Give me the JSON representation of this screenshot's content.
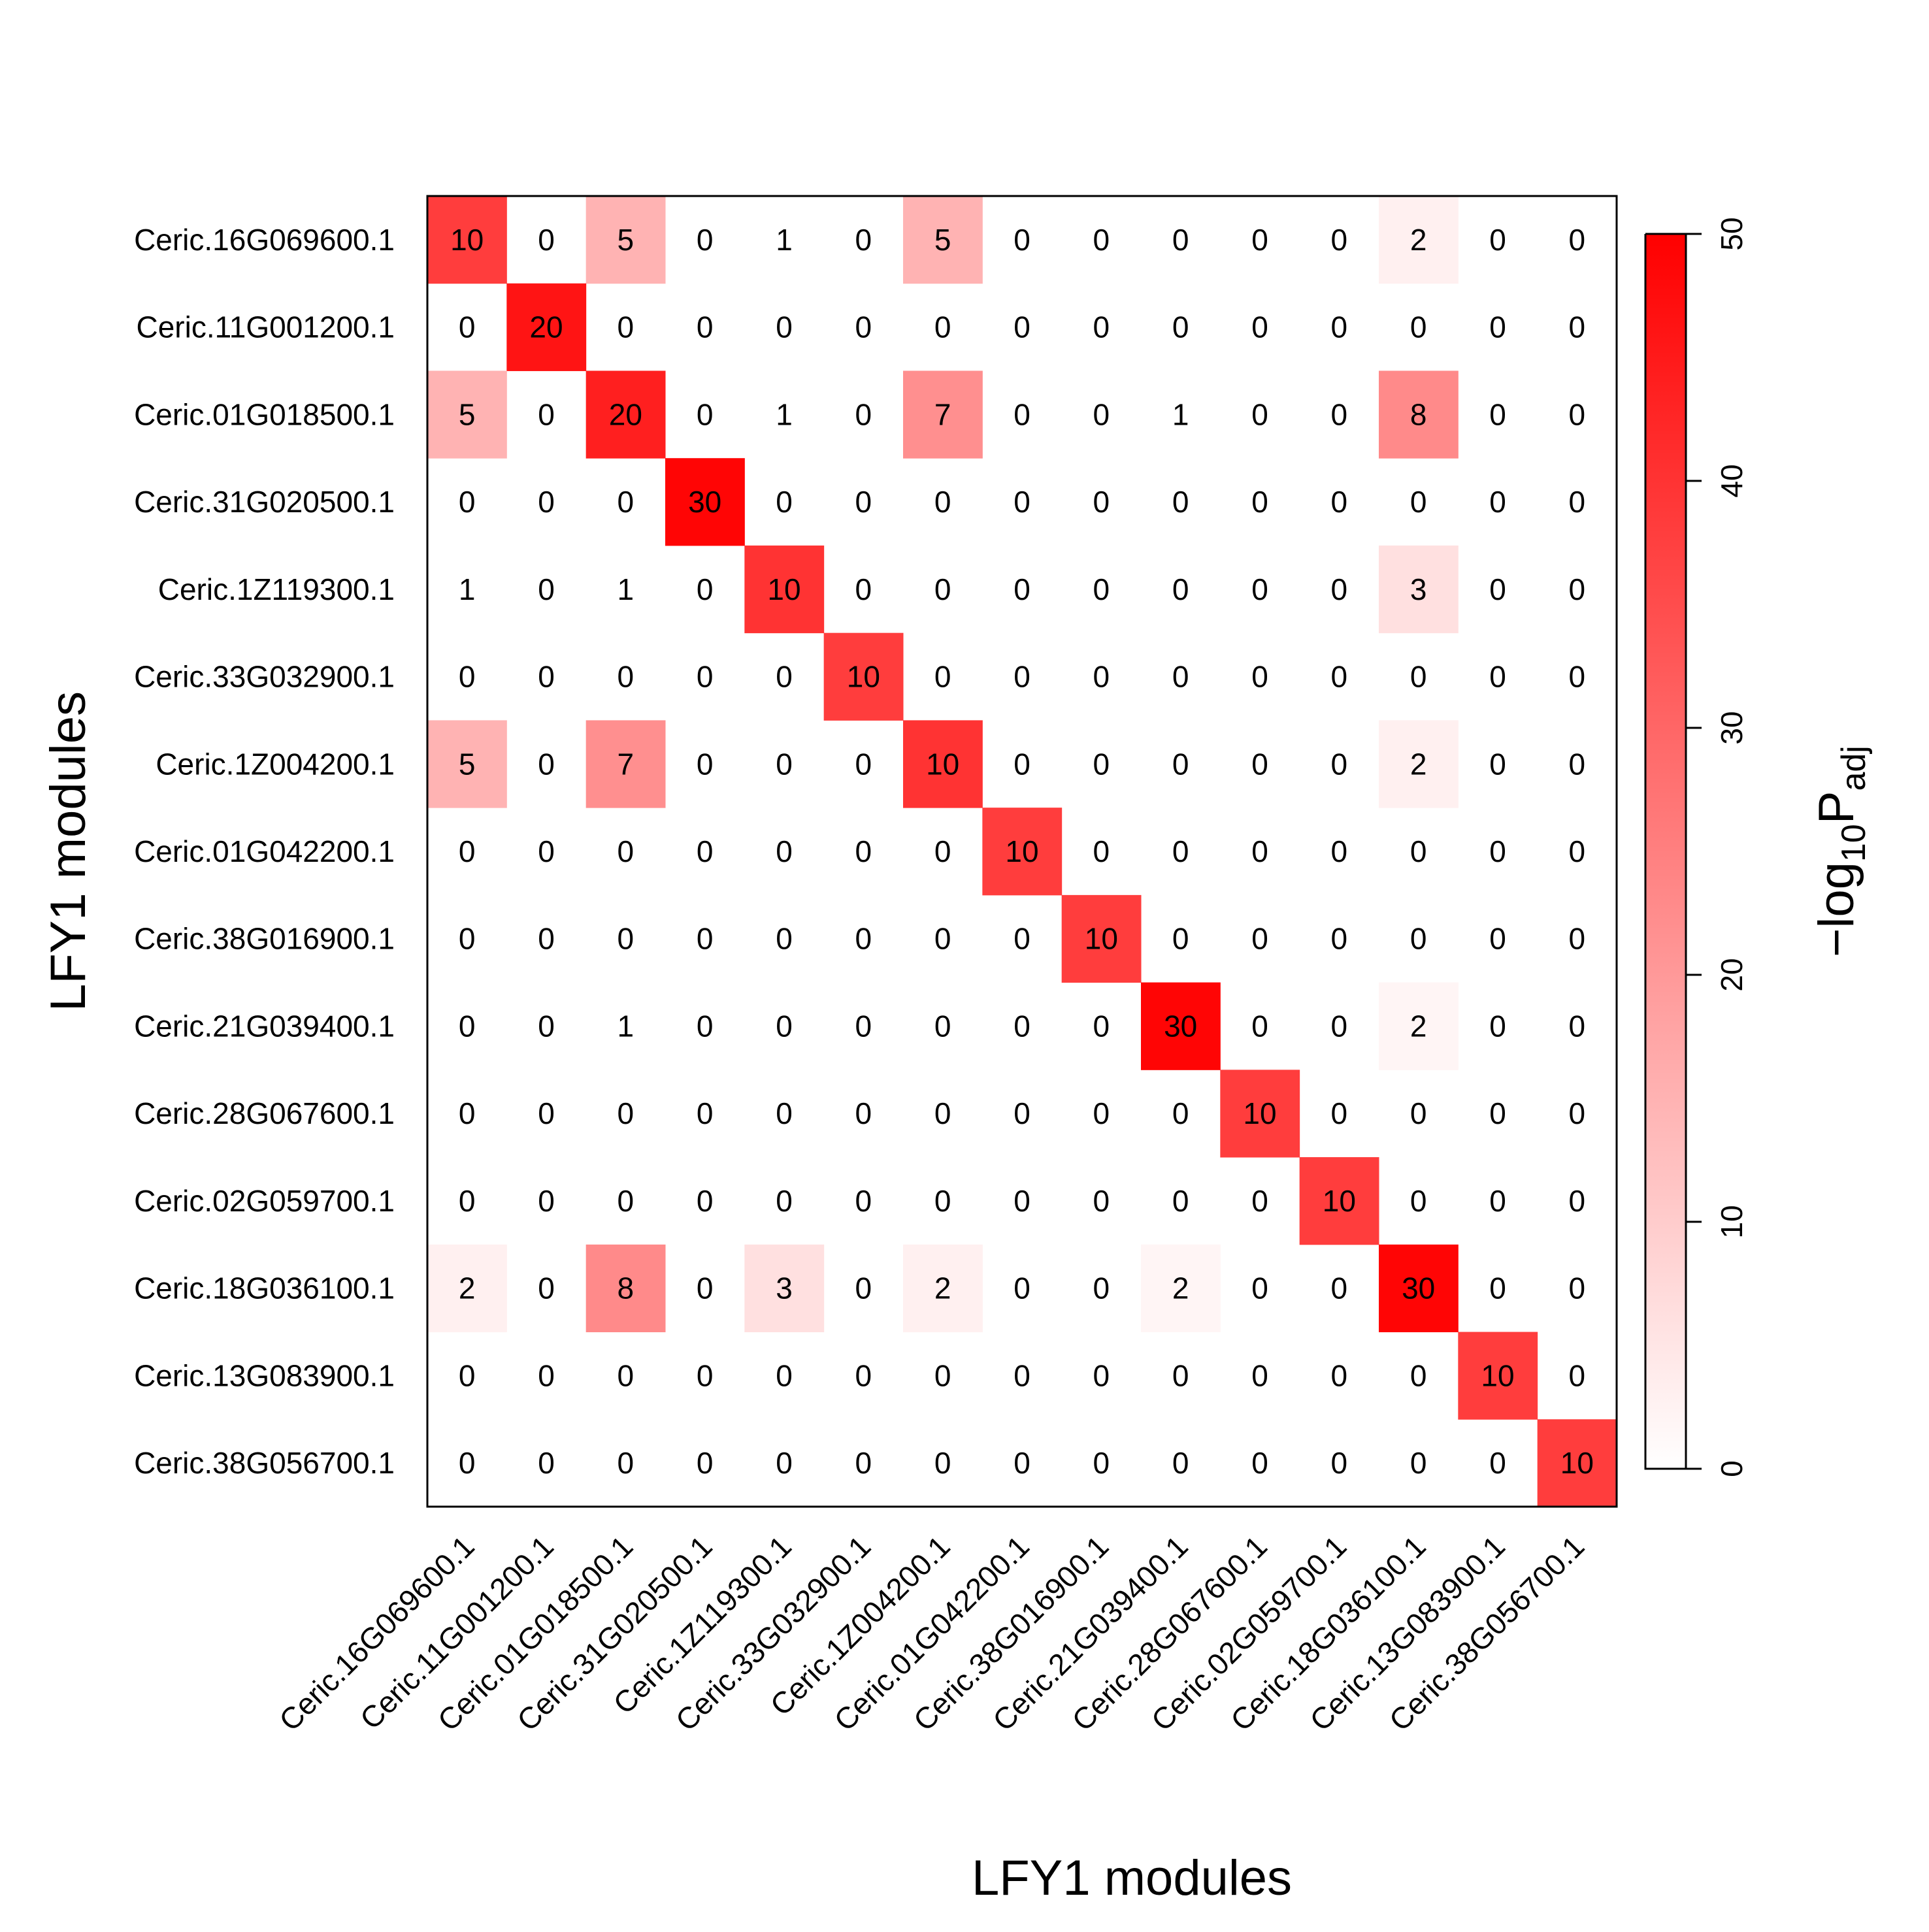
{
  "chart_data": {
    "type": "heatmap",
    "xlabel": "LFY1 modules",
    "ylabel": "LFY1 modules",
    "categories": [
      "Ceric.16G069600.1",
      "Ceric.11G001200.1",
      "Ceric.01G018500.1",
      "Ceric.31G020500.1",
      "Ceric.1Z119300.1",
      "Ceric.33G032900.1",
      "Ceric.1Z004200.1",
      "Ceric.01G042200.1",
      "Ceric.38G016900.1",
      "Ceric.21G039400.1",
      "Ceric.28G067600.1",
      "Ceric.02G059700.1",
      "Ceric.18G036100.1",
      "Ceric.13G083900.1",
      "Ceric.38G056700.1"
    ],
    "values": [
      [
        10,
        0,
        5,
        0,
        1,
        0,
        5,
        0,
        0,
        0,
        0,
        0,
        2,
        0,
        0
      ],
      [
        0,
        20,
        0,
        0,
        0,
        0,
        0,
        0,
        0,
        0,
        0,
        0,
        0,
        0,
        0
      ],
      [
        5,
        0,
        20,
        0,
        1,
        0,
        7,
        0,
        0,
        1,
        0,
        0,
        8,
        0,
        0
      ],
      [
        0,
        0,
        0,
        30,
        0,
        0,
        0,
        0,
        0,
        0,
        0,
        0,
        0,
        0,
        0
      ],
      [
        1,
        0,
        1,
        0,
        10,
        0,
        0,
        0,
        0,
        0,
        0,
        0,
        3,
        0,
        0
      ],
      [
        0,
        0,
        0,
        0,
        0,
        10,
        0,
        0,
        0,
        0,
        0,
        0,
        0,
        0,
        0
      ],
      [
        5,
        0,
        7,
        0,
        0,
        0,
        10,
        0,
        0,
        0,
        0,
        0,
        2,
        0,
        0
      ],
      [
        0,
        0,
        0,
        0,
        0,
        0,
        0,
        10,
        0,
        0,
        0,
        0,
        0,
        0,
        0
      ],
      [
        0,
        0,
        0,
        0,
        0,
        0,
        0,
        0,
        10,
        0,
        0,
        0,
        0,
        0,
        0
      ],
      [
        0,
        0,
        1,
        0,
        0,
        0,
        0,
        0,
        0,
        30,
        0,
        0,
        2,
        0,
        0
      ],
      [
        0,
        0,
        0,
        0,
        0,
        0,
        0,
        0,
        0,
        0,
        10,
        0,
        0,
        0,
        0
      ],
      [
        0,
        0,
        0,
        0,
        0,
        0,
        0,
        0,
        0,
        0,
        0,
        10,
        0,
        0,
        0
      ],
      [
        2,
        0,
        8,
        0,
        3,
        0,
        2,
        0,
        0,
        2,
        0,
        0,
        30,
        0,
        0
      ],
      [
        0,
        0,
        0,
        0,
        0,
        0,
        0,
        0,
        0,
        0,
        0,
        0,
        0,
        10,
        0
      ],
      [
        0,
        0,
        0,
        0,
        0,
        0,
        0,
        0,
        0,
        0,
        0,
        0,
        0,
        0,
        10
      ]
    ],
    "color_values": [
      [
        38,
        0,
        15,
        0,
        0,
        0,
        15,
        0,
        0,
        0,
        0,
        0,
        3,
        0,
        0
      ],
      [
        0,
        46,
        0,
        0,
        0,
        0,
        0,
        0,
        0,
        0,
        0,
        0,
        0,
        0,
        0
      ],
      [
        15,
        0,
        44,
        0,
        0,
        0,
        22,
        0,
        0,
        0,
        0,
        0,
        23,
        0,
        0
      ],
      [
        0,
        0,
        0,
        49,
        0,
        0,
        0,
        0,
        0,
        0,
        0,
        0,
        0,
        0,
        0
      ],
      [
        0,
        0,
        0,
        0,
        40,
        0,
        0,
        0,
        0,
        0,
        0,
        0,
        6,
        0,
        0
      ],
      [
        0,
        0,
        0,
        0,
        0,
        38,
        0,
        0,
        0,
        0,
        0,
        0,
        0,
        0,
        0
      ],
      [
        15,
        0,
        22,
        0,
        0,
        0,
        40,
        0,
        0,
        0,
        0,
        0,
        3,
        0,
        0
      ],
      [
        0,
        0,
        0,
        0,
        0,
        0,
        0,
        38,
        0,
        0,
        0,
        0,
        0,
        0,
        0
      ],
      [
        0,
        0,
        0,
        0,
        0,
        0,
        0,
        0,
        38,
        0,
        0,
        0,
        0,
        0,
        0
      ],
      [
        0,
        0,
        0,
        0,
        0,
        0,
        0,
        0,
        0,
        49,
        0,
        0,
        2,
        0,
        0
      ],
      [
        0,
        0,
        0,
        0,
        0,
        0,
        0,
        0,
        0,
        0,
        38,
        0,
        0,
        0,
        0
      ],
      [
        0,
        0,
        0,
        0,
        0,
        0,
        0,
        0,
        0,
        0,
        0,
        38,
        0,
        0,
        0
      ],
      [
        3,
        0,
        23,
        0,
        6,
        0,
        3,
        0,
        0,
        2,
        0,
        0,
        49,
        0,
        0
      ],
      [
        0,
        0,
        0,
        0,
        0,
        0,
        0,
        0,
        0,
        0,
        0,
        0,
        0,
        38,
        0
      ],
      [
        0,
        0,
        0,
        0,
        0,
        0,
        0,
        0,
        0,
        0,
        0,
        0,
        0,
        0,
        38
      ]
    ],
    "colorbar": {
      "label_main": "−log",
      "label_sub1": "10",
      "label_mid": "P",
      "label_sub2": "adj",
      "range": [
        0,
        50
      ],
      "ticks": [
        "0",
        "10",
        "20",
        "30",
        "40",
        "50"
      ],
      "color_low": "#FFFFFF",
      "color_high": "#FF0000"
    },
    "legend_position": "right",
    "grid": false
  }
}
